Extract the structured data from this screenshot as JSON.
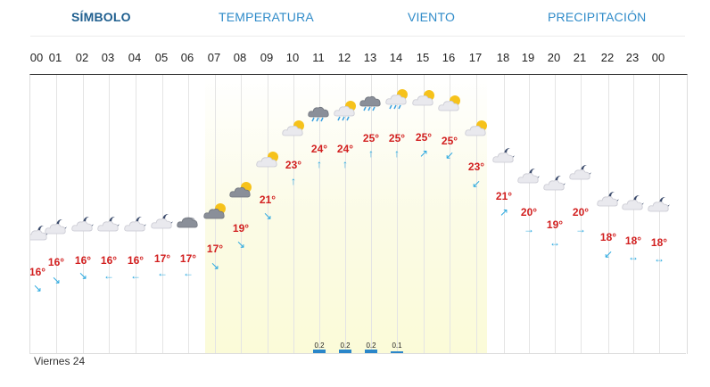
{
  "tabs": [
    "SÍMBOLO",
    "TEMPERATURA",
    "VIENTO",
    "PRECIPITACIÓN"
  ],
  "active_tab": 0,
  "hours": [
    {
      "label": "00",
      "temp": "16°",
      "wind": "↘",
      "cond": "moon-cloud"
    },
    {
      "label": "01",
      "temp": "16°",
      "wind": "↘",
      "cond": "moon-cloud"
    },
    {
      "label": "02",
      "temp": "16°",
      "wind": "↘",
      "cond": "moon-cloud"
    },
    {
      "label": "03",
      "temp": "16°",
      "wind": "←",
      "cond": "moon-cloud"
    },
    {
      "label": "04",
      "temp": "16°",
      "wind": "←",
      "cond": "moon-cloud"
    },
    {
      "label": "05",
      "temp": "17°",
      "wind": "←",
      "cond": "moon-cloud"
    },
    {
      "label": "06",
      "temp": "17°",
      "wind": "←",
      "cond": "cloud-dark"
    },
    {
      "label": "07",
      "temp": "17°",
      "wind": "↘",
      "cond": "sun-dark-cloud"
    },
    {
      "label": "08",
      "temp": "19°",
      "wind": "↘",
      "cond": "sun-dark-cloud"
    },
    {
      "label": "09",
      "temp": "21°",
      "wind": "↘",
      "cond": "sun-cloud"
    },
    {
      "label": "10",
      "temp": "23°",
      "wind": "↑",
      "cond": "sun-cloud"
    },
    {
      "label": "11",
      "temp": "24°",
      "wind": "↑",
      "cond": "storm-rain"
    },
    {
      "label": "12",
      "temp": "24°",
      "wind": "↑",
      "cond": "sun-rain"
    },
    {
      "label": "13",
      "temp": "25°",
      "wind": "↑",
      "cond": "storm-rain"
    },
    {
      "label": "14",
      "temp": "25°",
      "wind": "↑",
      "cond": "sun-rain"
    },
    {
      "label": "15",
      "temp": "25°",
      "wind": "↗",
      "cond": "sun-cloud"
    },
    {
      "label": "16",
      "temp": "25°",
      "wind": "↙",
      "cond": "sun-cloud"
    },
    {
      "label": "17",
      "temp": "23°",
      "wind": "↙",
      "cond": "sun-cloud"
    },
    {
      "label": "18",
      "temp": "21°",
      "wind": "↗",
      "cond": "moon-cloud"
    },
    {
      "label": "19",
      "temp": "20°",
      "wind": "→",
      "cond": "moon-cloud"
    },
    {
      "label": "20",
      "temp": "19°",
      "wind": "↔",
      "cond": "moon-cloud"
    },
    {
      "label": "21",
      "temp": "20°",
      "wind": "→",
      "cond": "moon-cloud"
    },
    {
      "label": "22",
      "temp": "18°",
      "wind": "↙",
      "cond": "moon-cloud"
    },
    {
      "label": "23",
      "temp": "18°",
      "wind": "↔",
      "cond": "moon-cloud"
    },
    {
      "label": "00",
      "temp": "18°",
      "wind": "↔",
      "cond": "moon-cloud"
    }
  ],
  "precipitation": [
    {
      "hour": "11",
      "value": "0.2"
    },
    {
      "hour": "12",
      "value": "0.2"
    },
    {
      "hour": "13",
      "value": "0.2"
    },
    {
      "hour": "14",
      "value": "0.1"
    }
  ],
  "day_label": "Viernes 24",
  "colors": {
    "tab": "#2f8bc9",
    "temp": "#d21f1f",
    "wind": "#2aa9e0",
    "rain": "#2a86c9"
  }
}
